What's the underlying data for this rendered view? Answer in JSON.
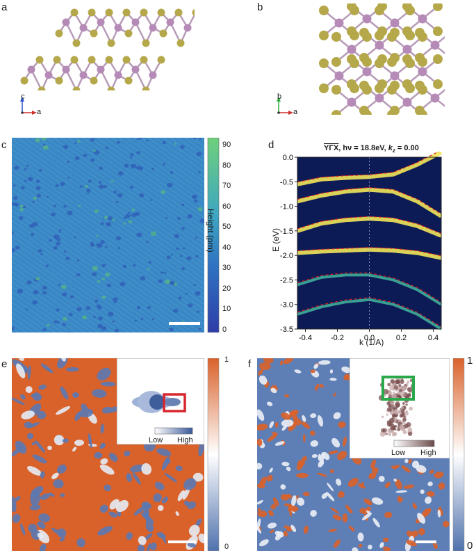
{
  "panels": {
    "a": {
      "label": "a",
      "axis_up": "c",
      "axis_right": "a"
    },
    "b": {
      "label": "b",
      "axis_up": "b",
      "axis_right": "a"
    },
    "c": {
      "label": "c",
      "colorbar_label": "Height (pm)",
      "colorbar_ticks": [
        "90",
        "80",
        "70",
        "60",
        "50",
        "40",
        "30",
        "20",
        "10",
        "0"
      ]
    },
    "d": {
      "label": "d",
      "title_path": "YΓX",
      "title_rest": ", hν = 18.8eV, ",
      "title_k": "k",
      "title_kz": "z",
      "title_end": " = 0.00",
      "ylabel": "E (eV)",
      "xlabel": "k (1/A)"
    },
    "e": {
      "label": "e",
      "cbar_top": "1",
      "cbar_bottom": "0",
      "inset_low": "Low",
      "inset_high": "High"
    },
    "f": {
      "label": "f",
      "cbar_top": "1",
      "cbar_bottom": "0",
      "inset_low": "Low",
      "inset_high": "High"
    }
  },
  "colors": {
    "mo": "#b58ab7",
    "s": "#b5a84a",
    "stm_low": "#2f58b5",
    "stm_high": "#4ec97a",
    "arpes_bg": "#0c1a56",
    "arpes_band": "#f1e65a",
    "dft": "#e02020",
    "map_high": "#d9622b",
    "map_low": "#4f72ad",
    "box_red": "#d8262e",
    "box_green": "#2aa84a"
  },
  "chart_data": {
    "type": "line",
    "title": "YΓX, hν = 18.8eV, kz = 0.00",
    "xlabel": "k (1/A)",
    "ylabel": "E (eV)",
    "xlim": [
      -0.45,
      0.45
    ],
    "ylim": [
      -3.5,
      0.0
    ],
    "x_ticks": [
      -0.4,
      -0.2,
      0.0,
      0.2,
      0.4
    ],
    "y_ticks": [
      0.0,
      -0.5,
      -1.0,
      -1.5,
      -2.0,
      -2.5,
      -3.0,
      -3.5
    ],
    "x_tick_labels": [
      "-0.4",
      "-0.2",
      "0.0",
      "0.2",
      "0.4"
    ],
    "y_tick_labels": [
      "0.0",
      "-0.5",
      "-1.0",
      "-1.5",
      "-2.0",
      "-2.5",
      "-3.0",
      "-3.5"
    ],
    "series": [
      {
        "x": [
          -0.45,
          -0.3,
          -0.15,
          0.0,
          0.15,
          0.3,
          0.45
        ],
        "y": [
          -0.55,
          -0.45,
          -0.42,
          -0.4,
          -0.35,
          -0.15,
          0.1
        ]
      },
      {
        "x": [
          -0.45,
          -0.3,
          -0.15,
          0.0,
          0.15,
          0.3,
          0.45
        ],
        "y": [
          -0.9,
          -0.78,
          -0.7,
          -0.66,
          -0.7,
          -0.9,
          -1.2
        ]
      },
      {
        "x": [
          -0.45,
          -0.3,
          -0.15,
          0.0,
          0.15,
          0.3,
          0.45
        ],
        "y": [
          -1.5,
          -1.35,
          -1.28,
          -1.25,
          -1.28,
          -1.4,
          -1.6
        ]
      },
      {
        "x": [
          -0.45,
          -0.3,
          -0.15,
          0.0,
          0.15,
          0.3,
          0.45
        ],
        "y": [
          -1.95,
          -1.92,
          -1.9,
          -1.88,
          -1.9,
          -1.95,
          -2.05
        ]
      },
      {
        "x": [
          -0.45,
          -0.3,
          -0.15,
          0.0,
          0.15,
          0.3,
          0.45
        ],
        "y": [
          -2.6,
          -2.45,
          -2.4,
          -2.4,
          -2.5,
          -2.7,
          -3.0
        ]
      },
      {
        "x": [
          -0.45,
          -0.3,
          -0.15,
          0.0,
          0.15,
          0.3,
          0.45
        ],
        "y": [
          -3.2,
          -3.05,
          -2.95,
          -2.9,
          -3.0,
          -3.2,
          -3.5
        ]
      }
    ]
  }
}
